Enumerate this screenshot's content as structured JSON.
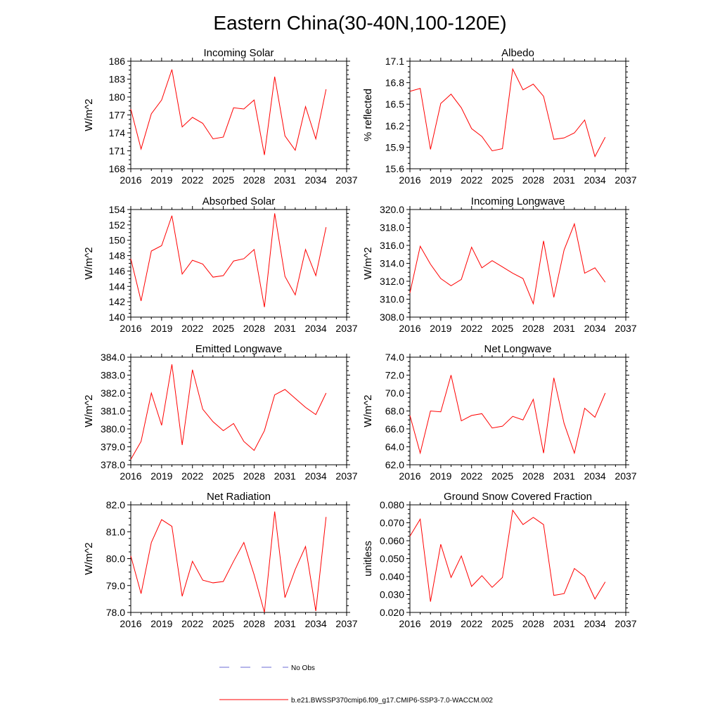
{
  "title": "Eastern China(30-40N,100-120E)",
  "series_color": "#ff0000",
  "noobs_color": "#6b6bd6",
  "legend": {
    "no_obs_label": "No Obs",
    "model_label": "b.e21.BWSSP370cmip6.f09_g17.CMIP6-SSP3-7.0-WACCM.002"
  },
  "chart_data": [
    {
      "type": "line",
      "title": "Incoming Solar",
      "xlabel": "",
      "ylabel": "W/m^2",
      "xlim": [
        2016,
        2037
      ],
      "ylim": [
        168,
        186
      ],
      "xticks": [
        "2016",
        "2019",
        "2022",
        "2025",
        "2028",
        "2031",
        "2034",
        "2037"
      ],
      "yticks": [
        "168",
        "171",
        "174",
        "177",
        "180",
        "183",
        "186"
      ],
      "x": [
        2016,
        2017,
        2018,
        2019,
        2020,
        2021,
        2022,
        2023,
        2024,
        2025,
        2026,
        2027,
        2028,
        2029,
        2030,
        2031,
        2032,
        2033,
        2034,
        2035
      ],
      "values": [
        178.0,
        171.3,
        177.2,
        179.5,
        184.6,
        175.0,
        176.6,
        175.6,
        173.0,
        173.3,
        178.2,
        178.0,
        179.5,
        170.3,
        183.4,
        173.5,
        171.1,
        178.4,
        173.0,
        181.3
      ]
    },
    {
      "type": "line",
      "title": "Albedo",
      "xlabel": "",
      "ylabel": "% reflected",
      "xlim": [
        2016,
        2037
      ],
      "ylim": [
        15.6,
        17.1
      ],
      "xticks": [
        "2016",
        "2019",
        "2022",
        "2025",
        "2028",
        "2031",
        "2034",
        "2037"
      ],
      "yticks": [
        "15.6",
        "15.9",
        "16.2",
        "16.5",
        "16.8",
        "17.1"
      ],
      "x": [
        2016,
        2017,
        2018,
        2019,
        2020,
        2021,
        2022,
        2023,
        2024,
        2025,
        2026,
        2027,
        2028,
        2029,
        2030,
        2031,
        2032,
        2033,
        2034,
        2035
      ],
      "values": [
        16.68,
        16.72,
        15.87,
        16.51,
        16.64,
        16.45,
        16.16,
        16.05,
        15.85,
        15.88,
        16.99,
        16.7,
        16.78,
        16.61,
        16.01,
        16.03,
        16.1,
        16.28,
        15.77,
        16.04
      ]
    },
    {
      "type": "line",
      "title": "Absorbed Solar",
      "xlabel": "",
      "ylabel": "W/m^2",
      "xlim": [
        2016,
        2037
      ],
      "ylim": [
        140,
        154
      ],
      "xticks": [
        "2016",
        "2019",
        "2022",
        "2025",
        "2028",
        "2031",
        "2034",
        "2037"
      ],
      "yticks": [
        "140",
        "142",
        "144",
        "146",
        "148",
        "150",
        "152",
        "154"
      ],
      "x": [
        2016,
        2017,
        2018,
        2019,
        2020,
        2021,
        2022,
        2023,
        2024,
        2025,
        2026,
        2027,
        2028,
        2029,
        2030,
        2031,
        2032,
        2033,
        2034,
        2035
      ],
      "values": [
        147.6,
        142.1,
        148.6,
        149.3,
        153.2,
        145.6,
        147.4,
        146.9,
        145.2,
        145.4,
        147.3,
        147.6,
        148.8,
        141.3,
        153.5,
        145.3,
        142.9,
        148.8,
        145.4,
        151.7
      ]
    },
    {
      "type": "line",
      "title": "Incoming Longwave",
      "xlabel": "",
      "ylabel": "W/m^2",
      "xlim": [
        2016,
        2037
      ],
      "ylim": [
        308.0,
        320.0
      ],
      "xticks": [
        "2016",
        "2019",
        "2022",
        "2025",
        "2028",
        "2031",
        "2034",
        "2037"
      ],
      "yticks": [
        "308.0",
        "310.0",
        "312.0",
        "314.0",
        "316.0",
        "318.0",
        "320.0"
      ],
      "x": [
        2016,
        2017,
        2018,
        2019,
        2020,
        2021,
        2022,
        2023,
        2024,
        2025,
        2026,
        2027,
        2028,
        2029,
        2030,
        2031,
        2032,
        2033,
        2034,
        2035
      ],
      "values": [
        310.7,
        315.9,
        313.9,
        312.3,
        311.5,
        312.2,
        315.8,
        313.5,
        314.3,
        313.6,
        312.9,
        312.3,
        309.5,
        316.5,
        310.2,
        315.5,
        318.4,
        312.9,
        313.5,
        311.9
      ]
    },
    {
      "type": "line",
      "title": "Emitted Longwave",
      "xlabel": "",
      "ylabel": "W/m^2",
      "xlim": [
        2016,
        2037
      ],
      "ylim": [
        378.0,
        384.0
      ],
      "xticks": [
        "2016",
        "2019",
        "2022",
        "2025",
        "2028",
        "2031",
        "2034",
        "2037"
      ],
      "yticks": [
        "378.0",
        "379.0",
        "380.0",
        "381.0",
        "382.0",
        "383.0",
        "384.0"
      ],
      "x": [
        2016,
        2017,
        2018,
        2019,
        2020,
        2021,
        2022,
        2023,
        2024,
        2025,
        2026,
        2027,
        2028,
        2029,
        2030,
        2031,
        2032,
        2033,
        2034,
        2035
      ],
      "values": [
        378.3,
        379.3,
        382.0,
        380.2,
        383.6,
        379.1,
        383.3,
        381.1,
        380.4,
        379.9,
        380.3,
        379.3,
        378.8,
        379.9,
        381.9,
        382.2,
        381.7,
        381.2,
        380.8,
        382.0
      ]
    },
    {
      "type": "line",
      "title": "Net Longwave",
      "xlabel": "",
      "ylabel": "W/m^2",
      "xlim": [
        2016,
        2037
      ],
      "ylim": [
        62.0,
        74.0
      ],
      "xticks": [
        "2016",
        "2019",
        "2022",
        "2025",
        "2028",
        "2031",
        "2034",
        "2037"
      ],
      "yticks": [
        "62.0",
        "64.0",
        "66.0",
        "68.0",
        "70.0",
        "72.0",
        "74.0"
      ],
      "x": [
        2016,
        2017,
        2018,
        2019,
        2020,
        2021,
        2022,
        2023,
        2024,
        2025,
        2026,
        2027,
        2028,
        2029,
        2030,
        2031,
        2032,
        2033,
        2034,
        2035
      ],
      "values": [
        67.5,
        63.3,
        68.0,
        67.9,
        72.0,
        66.9,
        67.5,
        67.7,
        66.1,
        66.3,
        67.4,
        67.0,
        69.3,
        63.3,
        71.7,
        66.6,
        63.3,
        68.3,
        67.3,
        70.0
      ]
    },
    {
      "type": "line",
      "title": "Net Radiation",
      "xlabel": "",
      "ylabel": "W/m^2",
      "xlim": [
        2016,
        2037
      ],
      "ylim": [
        78.0,
        82.0
      ],
      "xticks": [
        "2016",
        "2019",
        "2022",
        "2025",
        "2028",
        "2031",
        "2034",
        "2037"
      ],
      "yticks": [
        "78.0",
        "79.0",
        "80.0",
        "81.0",
        "82.0"
      ],
      "x": [
        2016,
        2017,
        2018,
        2019,
        2020,
        2021,
        2022,
        2023,
        2024,
        2025,
        2026,
        2027,
        2028,
        2029,
        2030,
        2031,
        2032,
        2033,
        2034,
        2035
      ],
      "values": [
        80.1,
        78.7,
        80.6,
        81.45,
        81.2,
        78.6,
        79.9,
        79.2,
        79.1,
        79.15,
        79.9,
        80.6,
        79.4,
        78.0,
        81.75,
        78.55,
        79.6,
        80.45,
        78.05,
        81.55
      ]
    },
    {
      "type": "line",
      "title": "Ground Snow Covered Fraction",
      "xlabel": "",
      "ylabel": "unitless",
      "xlim": [
        2016,
        2037
      ],
      "ylim": [
        0.02,
        0.08
      ],
      "xticks": [
        "2016",
        "2019",
        "2022",
        "2025",
        "2028",
        "2031",
        "2034",
        "2037"
      ],
      "yticks": [
        "0.020",
        "0.030",
        "0.040",
        "0.050",
        "0.060",
        "0.070",
        "0.080"
      ],
      "x": [
        2016,
        2017,
        2018,
        2019,
        2020,
        2021,
        2022,
        2023,
        2024,
        2025,
        2026,
        2027,
        2028,
        2029,
        2030,
        2031,
        2032,
        2033,
        2034,
        2035
      ],
      "values": [
        0.0625,
        0.072,
        0.026,
        0.058,
        0.0395,
        0.0515,
        0.0345,
        0.0405,
        0.034,
        0.0395,
        0.077,
        0.069,
        0.073,
        0.069,
        0.0295,
        0.0305,
        0.0445,
        0.04,
        0.0275,
        0.037
      ]
    }
  ]
}
